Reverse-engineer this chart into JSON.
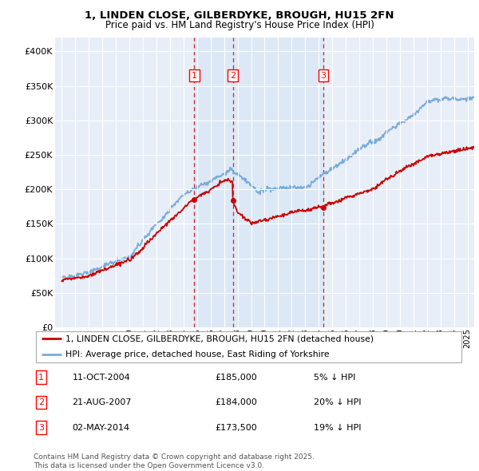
{
  "title_line1": "1, LINDEN CLOSE, GILBERDYKE, BROUGH, HU15 2FN",
  "title_line2": "Price paid vs. HM Land Registry's House Price Index (HPI)",
  "legend_line1": "1, LINDEN CLOSE, GILBERDYKE, BROUGH, HU15 2FN (detached house)",
  "legend_line2": "HPI: Average price, detached house, East Riding of Yorkshire",
  "footer": "Contains HM Land Registry data © Crown copyright and database right 2025.\nThis data is licensed under the Open Government Licence v3.0.",
  "sale_color": "#cc0000",
  "hpi_color": "#7aabdb",
  "shade_color": "#dce8f5",
  "background_color": "#e8eef8",
  "ylim": [
    0,
    420000
  ],
  "yticks": [
    0,
    50000,
    100000,
    150000,
    200000,
    250000,
    300000,
    350000,
    400000
  ],
  "sales": [
    {
      "date_num": 2004.8,
      "price": 185000,
      "label": "1"
    },
    {
      "date_num": 2007.65,
      "price": 184000,
      "label": "2"
    },
    {
      "date_num": 2014.33,
      "price": 173500,
      "label": "3"
    }
  ],
  "transactions": [
    {
      "num": "1",
      "date": "11-OCT-2004",
      "price": "£185,000",
      "hpi": "5% ↓ HPI"
    },
    {
      "num": "2",
      "date": "21-AUG-2007",
      "price": "£184,000",
      "hpi": "20% ↓ HPI"
    },
    {
      "num": "3",
      "date": "02-MAY-2014",
      "price": "£173,500",
      "hpi": "19% ↓ HPI"
    }
  ],
  "xlim": [
    1994.5,
    2025.5
  ]
}
